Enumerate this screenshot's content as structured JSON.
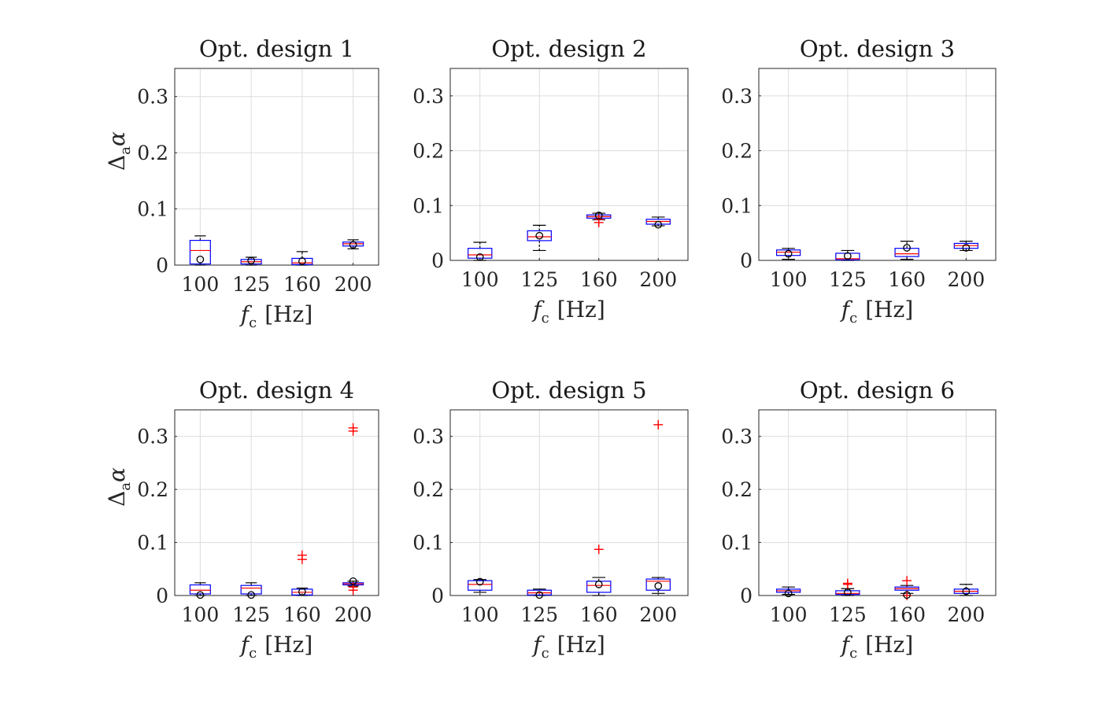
{
  "chart_data": [
    {
      "type": "boxplot",
      "title": "Opt. design 1",
      "xlabel_var": "f",
      "xlabel_sub": "c",
      "xlabel_unit": "[Hz]",
      "ylabel_sym": "Δ",
      "ylabel_sub": "a",
      "ylabel_var": "α",
      "ylim": [
        0,
        0.35
      ],
      "yticks": [
        "0",
        "0.1",
        "0.2",
        "0.3"
      ],
      "categories": [
        "100",
        "125",
        "160",
        "200"
      ],
      "boxes": [
        {
          "q1": 0.002,
          "median": 0.026,
          "q3": 0.044,
          "whisker_low": 0.0,
          "whisker_high": 0.052,
          "mean": 0.01,
          "outliers": []
        },
        {
          "q1": 0.002,
          "median": 0.006,
          "q3": 0.01,
          "whisker_low": 0.0,
          "whisker_high": 0.014,
          "mean": 0.008,
          "outliers": []
        },
        {
          "q1": 0.001,
          "median": 0.004,
          "q3": 0.012,
          "whisker_low": 0.0,
          "whisker_high": 0.024,
          "mean": 0.007,
          "outliers": []
        },
        {
          "q1": 0.034,
          "median": 0.038,
          "q3": 0.041,
          "whisker_low": 0.029,
          "whisker_high": 0.045,
          "mean": 0.036,
          "outliers": []
        }
      ]
    },
    {
      "type": "boxplot",
      "title": "Opt. design 2",
      "xlabel_var": "f",
      "xlabel_sub": "c",
      "xlabel_unit": "[Hz]",
      "ylabel_sym": "",
      "ylabel_sub": "",
      "ylabel_var": "",
      "ylim": [
        0,
        0.35
      ],
      "yticks": [
        "0",
        "0.1",
        "0.2",
        "0.3"
      ],
      "categories": [
        "100",
        "125",
        "160",
        "200"
      ],
      "boxes": [
        {
          "q1": 0.004,
          "median": 0.01,
          "q3": 0.022,
          "whisker_low": 0.0,
          "whisker_high": 0.033,
          "mean": 0.006,
          "outliers": []
        },
        {
          "q1": 0.036,
          "median": 0.043,
          "q3": 0.054,
          "whisker_low": 0.018,
          "whisker_high": 0.064,
          "mean": 0.045,
          "outliers": []
        },
        {
          "q1": 0.077,
          "median": 0.08,
          "q3": 0.083,
          "whisker_low": 0.074,
          "whisker_high": 0.086,
          "mean": 0.082,
          "outliers": [
            0.075,
            0.069
          ]
        },
        {
          "q1": 0.066,
          "median": 0.071,
          "q3": 0.075,
          "whisker_low": 0.063,
          "whisker_high": 0.079,
          "mean": 0.065,
          "outliers": []
        }
      ]
    },
    {
      "type": "boxplot",
      "title": "Opt. design 3",
      "xlabel_var": "f",
      "xlabel_sub": "c",
      "xlabel_unit": "[Hz]",
      "ylabel_sym": "",
      "ylabel_sub": "",
      "ylabel_var": "",
      "ylim": [
        0,
        0.35
      ],
      "yticks": [
        "0",
        "0.1",
        "0.2",
        "0.3"
      ],
      "categories": [
        "100",
        "125",
        "160",
        "200"
      ],
      "boxes": [
        {
          "q1": 0.009,
          "median": 0.015,
          "q3": 0.019,
          "whisker_low": 0.002,
          "whisker_high": 0.022,
          "mean": 0.012,
          "outliers": []
        },
        {
          "q1": 0.001,
          "median": 0.003,
          "q3": 0.013,
          "whisker_low": 0.0,
          "whisker_high": 0.018,
          "mean": 0.008,
          "outliers": []
        },
        {
          "q1": 0.007,
          "median": 0.012,
          "q3": 0.022,
          "whisker_low": 0.002,
          "whisker_high": 0.035,
          "mean": 0.023,
          "outliers": []
        },
        {
          "q1": 0.022,
          "median": 0.027,
          "q3": 0.031,
          "whisker_low": 0.018,
          "whisker_high": 0.035,
          "mean": 0.023,
          "outliers": []
        }
      ]
    },
    {
      "type": "boxplot",
      "title": "Opt. design 4",
      "xlabel_var": "f",
      "xlabel_sub": "c",
      "xlabel_unit": "[Hz]",
      "ylabel_sym": "Δ",
      "ylabel_sub": "a",
      "ylabel_var": "α",
      "ylim": [
        0,
        0.35
      ],
      "yticks": [
        "0",
        "0.1",
        "0.2",
        "0.3"
      ],
      "categories": [
        "100",
        "125",
        "160",
        "200"
      ],
      "boxes": [
        {
          "q1": 0.003,
          "median": 0.01,
          "q3": 0.02,
          "whisker_low": 0.0,
          "whisker_high": 0.024,
          "mean": 0.001,
          "outliers": []
        },
        {
          "q1": 0.003,
          "median": 0.014,
          "q3": 0.019,
          "whisker_low": 0.0,
          "whisker_high": 0.024,
          "mean": 0.001,
          "outliers": []
        },
        {
          "q1": 0.001,
          "median": 0.006,
          "q3": 0.012,
          "whisker_low": 0.0,
          "whisker_high": 0.014,
          "mean": 0.007,
          "outliers": [
            0.076,
            0.068
          ]
        },
        {
          "q1": 0.02,
          "median": 0.022,
          "q3": 0.024,
          "whisker_low": 0.018,
          "whisker_high": 0.027,
          "mean": 0.027,
          "outliers": [
            0.316,
            0.31,
            0.016,
            0.01
          ]
        }
      ]
    },
    {
      "type": "boxplot",
      "title": "Opt. design 5",
      "xlabel_var": "f",
      "xlabel_sub": "c",
      "xlabel_unit": "[Hz]",
      "ylabel_sym": "",
      "ylabel_sub": "",
      "ylabel_var": "",
      "ylim": [
        0,
        0.35
      ],
      "yticks": [
        "0",
        "0.1",
        "0.2",
        "0.3"
      ],
      "categories": [
        "100",
        "125",
        "160",
        "200"
      ],
      "boxes": [
        {
          "q1": 0.01,
          "median": 0.021,
          "q3": 0.028,
          "whisker_low": 0.006,
          "whisker_high": 0.03,
          "mean": 0.026,
          "outliers": []
        },
        {
          "q1": 0.001,
          "median": 0.005,
          "q3": 0.01,
          "whisker_low": 0.0,
          "whisker_high": 0.012,
          "mean": 0.001,
          "outliers": []
        },
        {
          "q1": 0.006,
          "median": 0.019,
          "q3": 0.027,
          "whisker_low": 0.0,
          "whisker_high": 0.034,
          "mean": 0.021,
          "outliers": [
            0.087
          ]
        },
        {
          "q1": 0.01,
          "median": 0.027,
          "q3": 0.031,
          "whisker_low": 0.004,
          "whisker_high": 0.034,
          "mean": 0.018,
          "outliers": [
            0.322
          ]
        }
      ]
    },
    {
      "type": "boxplot",
      "title": "Opt. design 6",
      "xlabel_var": "f",
      "xlabel_sub": "c",
      "xlabel_unit": "[Hz]",
      "ylabel_sym": "",
      "ylabel_sub": "",
      "ylabel_var": "",
      "ylim": [
        0,
        0.35
      ],
      "yticks": [
        "0",
        "0.1",
        "0.2",
        "0.3"
      ],
      "categories": [
        "100",
        "125",
        "160",
        "200"
      ],
      "boxes": [
        {
          "q1": 0.006,
          "median": 0.009,
          "q3": 0.012,
          "whisker_low": 0.002,
          "whisker_high": 0.016,
          "mean": 0.004,
          "outliers": []
        },
        {
          "q1": 0.002,
          "median": 0.004,
          "q3": 0.009,
          "whisker_low": 0.0,
          "whisker_high": 0.013,
          "mean": 0.006,
          "outliers": [
            0.023,
            0.021
          ]
        },
        {
          "q1": 0.01,
          "median": 0.013,
          "q3": 0.016,
          "whisker_low": 0.004,
          "whisker_high": 0.019,
          "mean": 0.001,
          "outliers": [
            0.028,
            0.0
          ]
        },
        {
          "q1": 0.004,
          "median": 0.008,
          "q3": 0.012,
          "whisker_low": 0.0,
          "whisker_high": 0.021,
          "mean": 0.008,
          "outliers": []
        }
      ]
    }
  ]
}
